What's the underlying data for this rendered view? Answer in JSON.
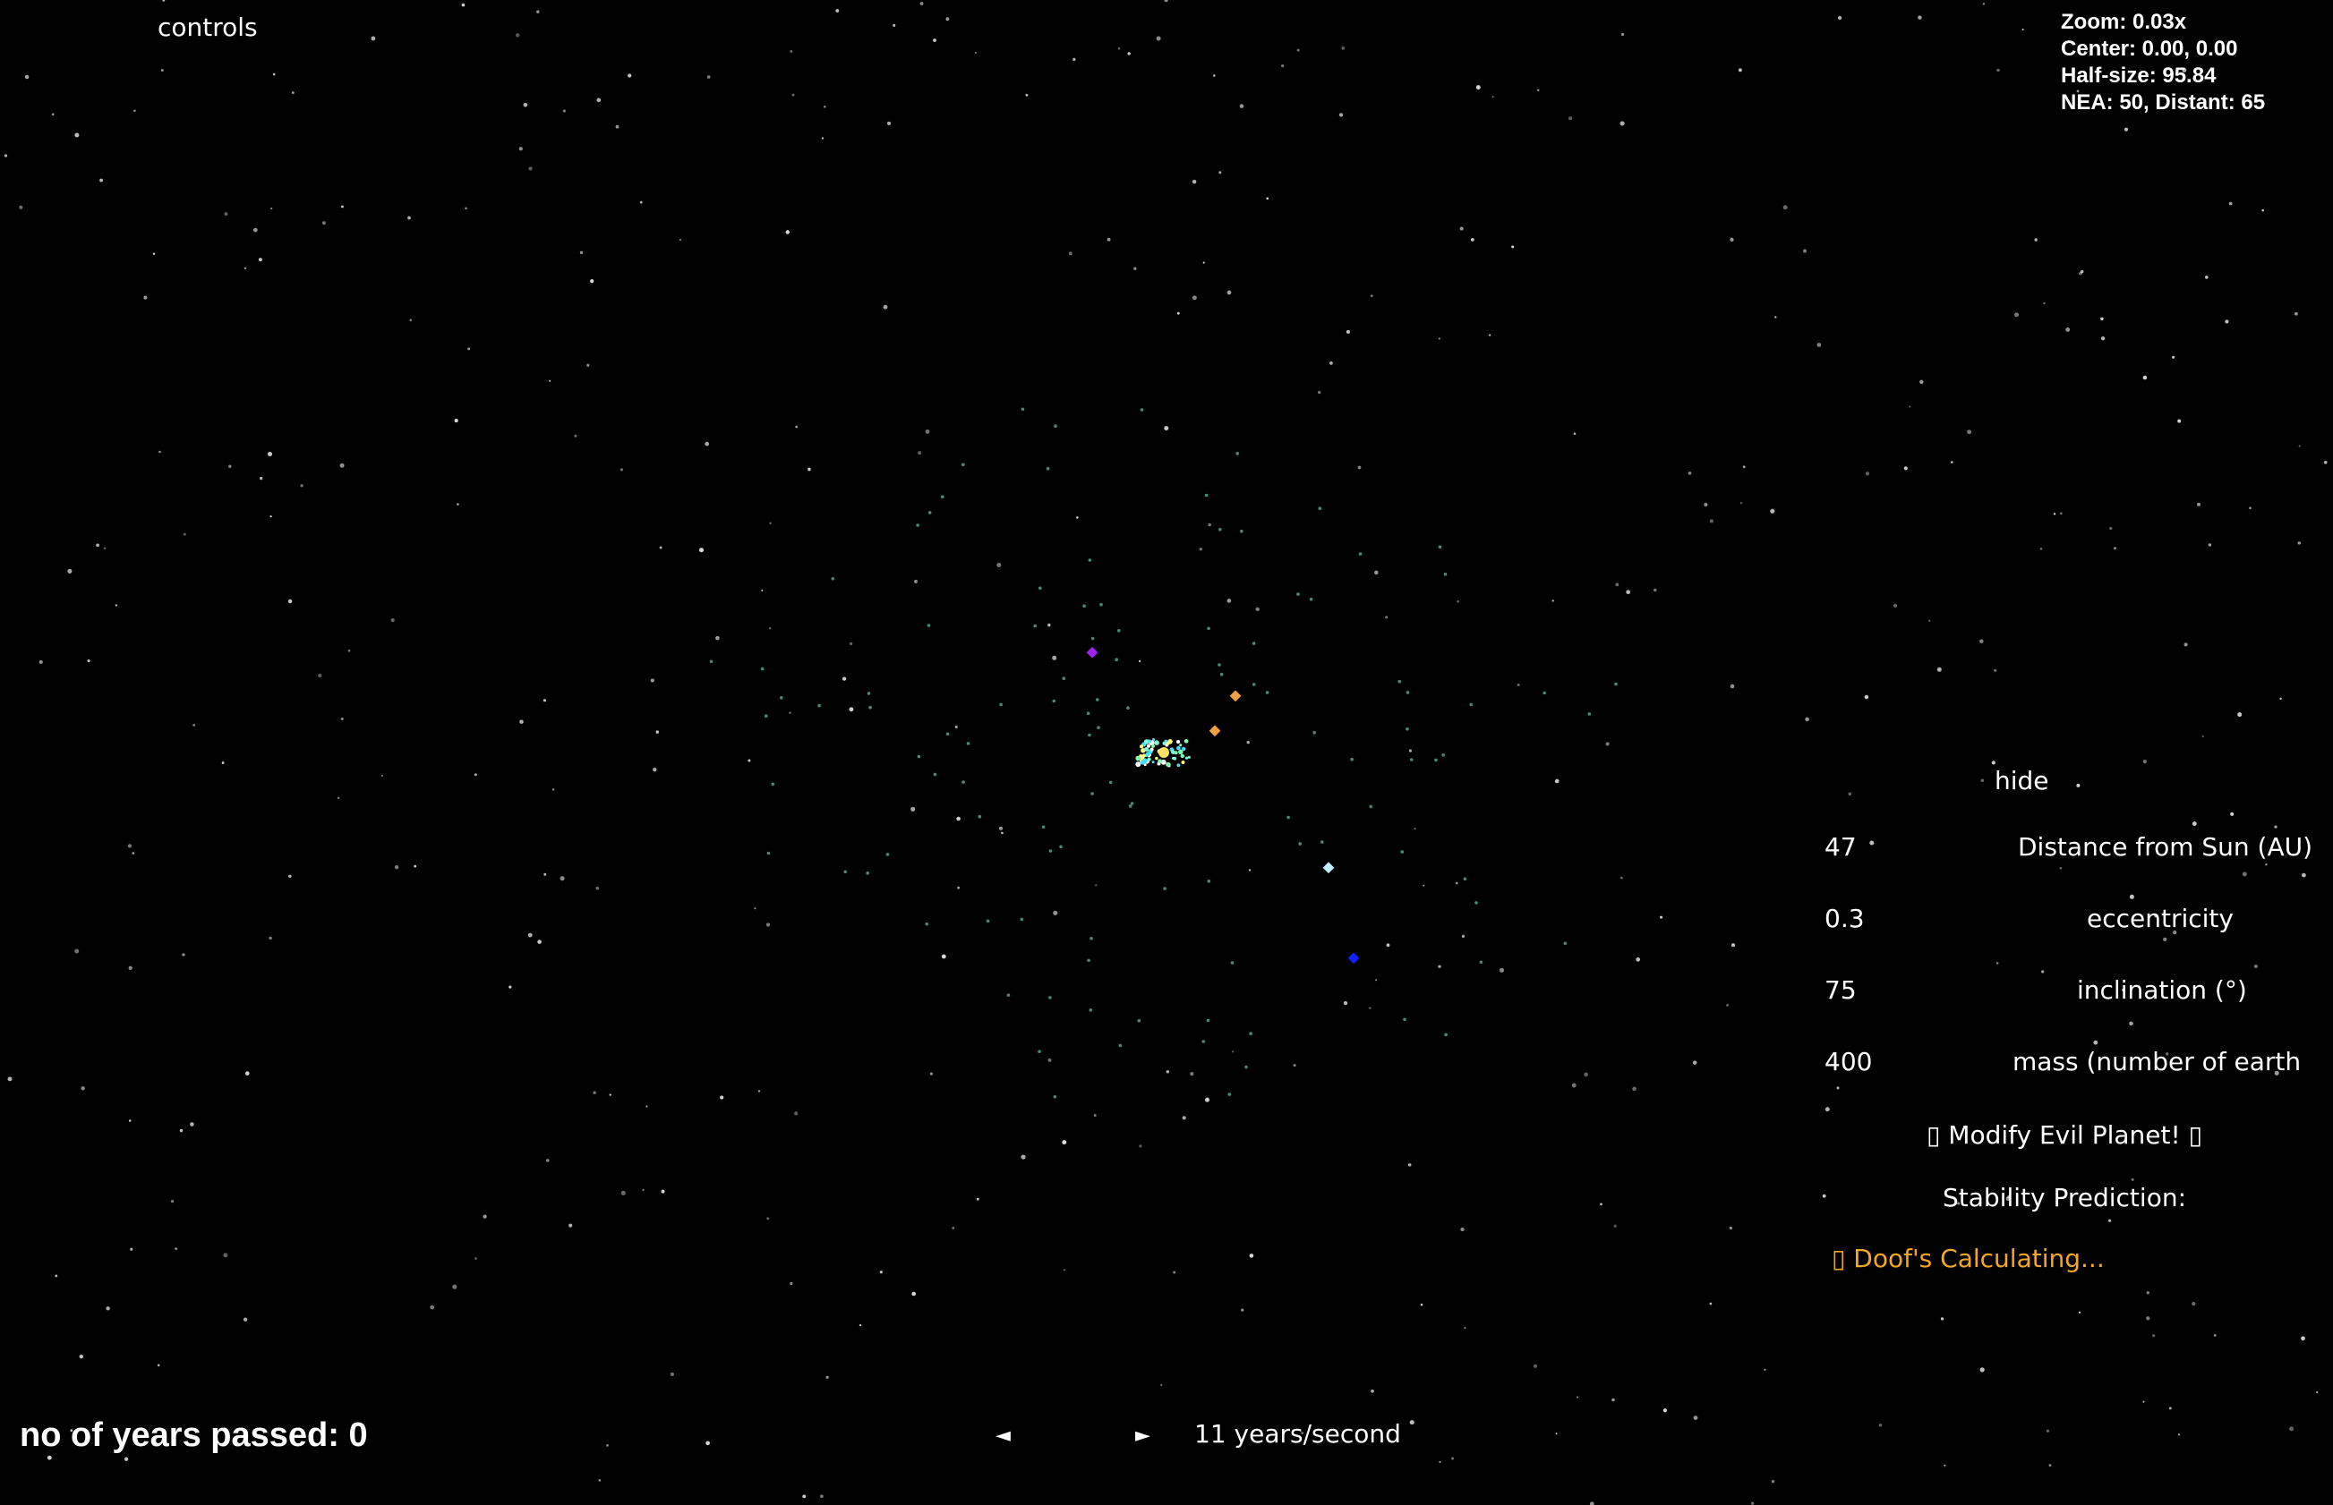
{
  "controls_label": "controls",
  "hud": {
    "zoom": "Zoom: 0.03x",
    "center": "Center: 0.00, 0.00",
    "half_size": "Half-size: 95.84",
    "counts": "NEA: 50, Distant: 65"
  },
  "years_passed": "no of years passed: 0",
  "speed": {
    "prev_icon": "◄",
    "next_icon": "►",
    "label": "11 years/second"
  },
  "panel": {
    "hide_label": "hide",
    "params": [
      {
        "value": "47",
        "label": "Distance from Sun (AU)"
      },
      {
        "value": "0.3",
        "label": "eccentricity"
      },
      {
        "value": "75",
        "label": "inclination (°)"
      },
      {
        "value": "400",
        "label": "mass (number of earth r"
      }
    ],
    "modify_button": "▯ Modify Evil Planet! ▯",
    "stability_label": "Stability Prediction:",
    "calculating": "▯ Doof's Calculating..."
  },
  "colors": {
    "background": "#000000",
    "calculating_text": "#f5a623",
    "planet_purple": "#a020f0",
    "planet_orange": "#f5a040",
    "planet_lightblue": "#bfefff",
    "planet_blue": "#1020ff",
    "asteroid_cyan": "#7fffd4"
  }
}
